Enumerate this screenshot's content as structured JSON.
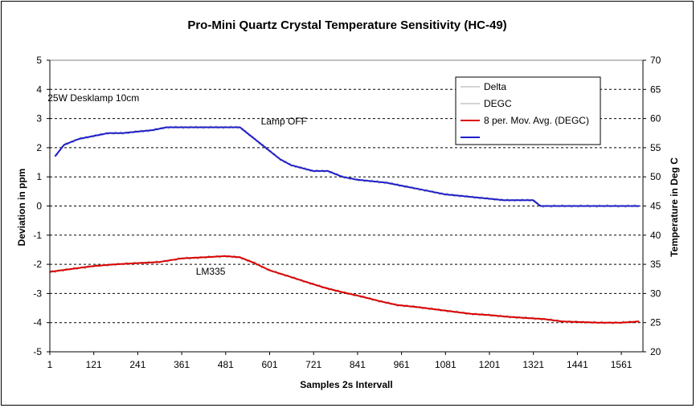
{
  "chart_data": {
    "type": "line",
    "title": "Pro-Mini Quartz Crystal Temperature Sensitivity (HC-49)",
    "xlabel": "Samples 2s Intervall",
    "ylabel": "Deviation in ppm",
    "y2label": "Temperature in Deg C",
    "xlim": [
      1,
      1620
    ],
    "ylim": [
      -5,
      5
    ],
    "y2lim": [
      20,
      70
    ],
    "x_ticks": [
      "1",
      "121",
      "241",
      "361",
      "481",
      "601",
      "721",
      "841",
      "961",
      "1081",
      "1201",
      "1321",
      "1441",
      "1561"
    ],
    "x_tick_values": [
      1,
      121,
      241,
      361,
      481,
      601,
      721,
      841,
      961,
      1081,
      1201,
      1321,
      1441,
      1561
    ],
    "y_ticks": [
      "5",
      "4",
      "3",
      "2",
      "1",
      "0",
      "-1",
      "-2",
      "-3",
      "-4",
      "-5"
    ],
    "y_tick_values": [
      5,
      4,
      3,
      2,
      1,
      0,
      -1,
      -2,
      -3,
      -4,
      -5
    ],
    "y2_ticks": [
      "70",
      "65",
      "60",
      "55",
      "50",
      "45",
      "40",
      "35",
      "30",
      "25",
      "20"
    ],
    "y2_tick_values": [
      70,
      65,
      60,
      55,
      50,
      45,
      40,
      35,
      30,
      25,
      20
    ],
    "grid": "horizontal dashed",
    "legend_position": "top-right",
    "series": [
      {
        "name": "Delta",
        "axis": "left",
        "color": "#aaaaaa",
        "x": [
          15,
          40,
          80,
          120,
          160,
          200,
          240,
          280,
          320,
          360,
          400,
          440,
          480,
          520,
          540,
          560,
          580,
          600,
          630,
          660,
          690,
          720,
          760,
          800,
          840,
          880,
          920,
          960,
          1000,
          1040,
          1080,
          1120,
          1160,
          1200,
          1240,
          1280,
          1320,
          1340,
          1400,
          1450,
          1500,
          1560,
          1610
        ],
        "y": [
          1.7,
          2.1,
          2.3,
          2.4,
          2.5,
          2.5,
          2.55,
          2.6,
          2.7,
          2.7,
          2.7,
          2.7,
          2.7,
          2.7,
          2.5,
          2.3,
          2.1,
          1.9,
          1.6,
          1.4,
          1.3,
          1.2,
          1.2,
          1.0,
          0.9,
          0.85,
          0.8,
          0.7,
          0.6,
          0.5,
          0.4,
          0.35,
          0.3,
          0.25,
          0.2,
          0.2,
          0.2,
          0.0,
          0.0,
          0.0,
          0.0,
          0.0,
          0.0
        ]
      },
      {
        "name": "DEGC",
        "axis": "right",
        "color": "#aaaaaa",
        "x": [
          1,
          60,
          120,
          180,
          240,
          300,
          360,
          420,
          480,
          520,
          560,
          600,
          650,
          700,
          750,
          800,
          850,
          900,
          950,
          1000,
          1050,
          1100,
          1150,
          1200,
          1250,
          1300,
          1350,
          1400,
          1450,
          1500,
          1560,
          1610
        ],
        "y": [
          33.7,
          34.2,
          34.7,
          35.0,
          35.2,
          35.4,
          36.0,
          36.2,
          36.4,
          36.2,
          35.2,
          34.0,
          33.0,
          32.0,
          31.0,
          30.2,
          29.5,
          28.7,
          28.0,
          27.7,
          27.3,
          26.9,
          26.5,
          26.3,
          26.0,
          25.8,
          25.6,
          25.2,
          25.1,
          25.0,
          25.0,
          25.2
        ]
      },
      {
        "name": "8 per. Mov. Avg. (DEGC)",
        "axis": "right",
        "color": "#dd0000",
        "x": [
          1,
          60,
          120,
          180,
          240,
          300,
          360,
          420,
          480,
          520,
          560,
          600,
          650,
          700,
          750,
          800,
          850,
          900,
          950,
          1000,
          1050,
          1100,
          1150,
          1200,
          1250,
          1300,
          1350,
          1400,
          1450,
          1500,
          1560,
          1610
        ],
        "y": [
          33.7,
          34.2,
          34.7,
          35.0,
          35.2,
          35.4,
          36.0,
          36.2,
          36.4,
          36.2,
          35.2,
          34.0,
          33.0,
          32.0,
          31.0,
          30.2,
          29.5,
          28.7,
          28.0,
          27.7,
          27.3,
          26.9,
          26.5,
          26.3,
          26.0,
          25.8,
          25.6,
          25.2,
          25.1,
          25.0,
          25.0,
          25.2
        ]
      },
      {
        "name": "",
        "axis": "left",
        "color": "#1f1fcc",
        "x": [
          15,
          40,
          80,
          120,
          160,
          200,
          240,
          280,
          320,
          360,
          400,
          440,
          480,
          520,
          540,
          560,
          580,
          600,
          630,
          660,
          690,
          720,
          760,
          800,
          840,
          880,
          920,
          960,
          1000,
          1040,
          1080,
          1120,
          1160,
          1200,
          1240,
          1280,
          1320,
          1340,
          1400,
          1450,
          1500,
          1560,
          1610
        ],
        "y": [
          1.7,
          2.1,
          2.3,
          2.4,
          2.5,
          2.5,
          2.55,
          2.6,
          2.7,
          2.7,
          2.7,
          2.7,
          2.7,
          2.7,
          2.5,
          2.3,
          2.1,
          1.9,
          1.6,
          1.4,
          1.3,
          1.2,
          1.2,
          1.0,
          0.9,
          0.85,
          0.8,
          0.7,
          0.6,
          0.5,
          0.4,
          0.35,
          0.3,
          0.25,
          0.2,
          0.2,
          0.2,
          0.0,
          0.0,
          0.0,
          0.0,
          0.0,
          0.0
        ]
      }
    ],
    "annotations": [
      {
        "text": "25W Desklamp 10cm",
        "x": 120,
        "y": 3.6,
        "axis": "left"
      },
      {
        "text": "Lamp OFF",
        "x": 640,
        "y": 2.8,
        "axis": "left"
      },
      {
        "text": "LM335",
        "x": 440,
        "y": -2.35,
        "axis": "left"
      }
    ]
  }
}
